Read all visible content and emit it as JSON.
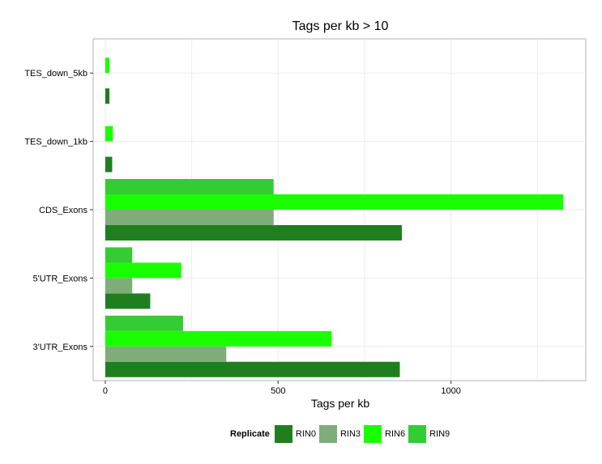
{
  "chart_data": {
    "type": "bar",
    "orientation": "horizontal",
    "title": "Tags per kb > 10",
    "xlabel": "Tags per kb",
    "ylabel": "",
    "xlim": [
      -35,
      1390
    ],
    "xticks": [
      0,
      500,
      1000
    ],
    "xtick_labels": [
      "0",
      "500",
      "1000"
    ],
    "categories": [
      "3'UTR_Exons",
      "5'UTR_Exons",
      "CDS_Exons",
      "TES_down_1kb",
      "TES_down_5kb"
    ],
    "grid": true,
    "legend": {
      "title": "Replicate",
      "placement": "bottom"
    },
    "series": [
      {
        "name": "RIN0",
        "color": "#1f7f1f",
        "values": [
          852,
          130,
          858,
          20,
          12
        ]
      },
      {
        "name": "RIN3",
        "color": "#7fad7a",
        "values": [
          350,
          78,
          487,
          0,
          0
        ]
      },
      {
        "name": "RIN6",
        "color": "#1aff00",
        "values": [
          655,
          220,
          1325,
          22,
          12
        ]
      },
      {
        "name": "RIN9",
        "color": "#33cc33",
        "values": [
          225,
          78,
          487,
          0,
          0
        ]
      }
    ]
  }
}
